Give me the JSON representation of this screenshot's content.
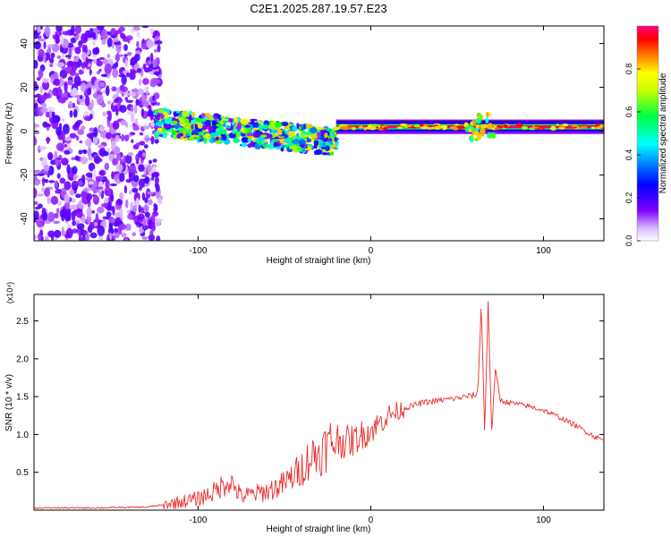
{
  "title": "C2E1.2025.287.19.57.E23",
  "chart_data": [
    {
      "type": "heatmap",
      "title": "C2E1.2025.287.19.57.E23",
      "xlabel": "Height of straight line (km)",
      "ylabel": "Frequency (Hz)",
      "xlim": [
        -195,
        135
      ],
      "ylim": [
        -50,
        48
      ],
      "x_ticks": [
        -100,
        0,
        100
      ],
      "y_ticks": [
        -40,
        -20,
        0,
        20,
        40
      ],
      "x_tick_labels": [
        "-100",
        "0",
        "100"
      ],
      "y_tick_labels": [
        "-40",
        "-20",
        "0",
        "20",
        "40"
      ],
      "colorbar": {
        "label": "Normalized spectral amplitude",
        "range": [
          0,
          1
        ],
        "ticks": [
          0.0,
          0.2,
          0.4,
          0.6,
          0.8
        ],
        "tick_labels": [
          "0.0",
          "0.2",
          "0.4",
          "0.6",
          "0.8"
        ],
        "colormap": [
          "#ffffff",
          "#8000ff",
          "#0000ff",
          "#00ffff",
          "#00ff00",
          "#ffff00",
          "#ff8000",
          "#ff0000",
          "#ff0080"
        ]
      },
      "regions": [
        {
          "x_range": [
            -195,
            -122
          ],
          "freq_range": [
            -50,
            48
          ],
          "amplitude": 0.15,
          "note": "broadband noise"
        },
        {
          "x_range": [
            -125,
            -20
          ],
          "freq_center": [
            4,
            -5
          ],
          "freq_spread": 6,
          "amplitude": 0.5
        },
        {
          "x_range": [
            -20,
            135
          ],
          "freq_center": 2,
          "freq_spread": 1.5,
          "amplitude": 0.95
        }
      ]
    },
    {
      "type": "line",
      "xlabel": "Height of straight line (km)",
      "ylabel": "SNR (10 * v/v)",
      "y_scale_label": "(x10⁴)",
      "xlim": [
        -195,
        135
      ],
      "ylim": [
        0,
        2.85
      ],
      "x_ticks": [
        -100,
        0,
        100
      ],
      "y_ticks": [
        0.5,
        1.0,
        1.5,
        2.0,
        2.5
      ],
      "x_tick_labels": [
        "-100",
        "0",
        "100"
      ],
      "y_tick_labels": [
        "0.5",
        "1.0",
        "1.5",
        "2.0",
        "2.5"
      ],
      "series": [
        {
          "name": "SNR",
          "color": "#e8302c",
          "x": [
            -195,
            -160,
            -130,
            -120,
            -100,
            -90,
            -82,
            -75,
            -60,
            -50,
            -40,
            -35,
            -30,
            -25,
            -20,
            -15,
            -10,
            -5,
            0,
            10,
            20,
            30,
            40,
            50,
            55,
            60,
            62,
            64,
            66,
            68,
            70,
            72,
            75,
            80,
            90,
            100,
            110,
            120,
            130,
            135
          ],
          "values": [
            0.03,
            0.03,
            0.04,
            0.07,
            0.15,
            0.25,
            0.4,
            0.18,
            0.25,
            0.35,
            0.55,
            0.7,
            0.75,
            0.85,
            0.95,
            0.9,
            0.92,
            1.0,
            1.05,
            1.25,
            1.35,
            1.42,
            1.45,
            1.48,
            1.5,
            1.52,
            1.55,
            2.75,
            1.0,
            2.8,
            1.0,
            1.85,
            1.45,
            1.42,
            1.38,
            1.32,
            1.22,
            1.1,
            0.97,
            0.92
          ]
        }
      ]
    }
  ]
}
